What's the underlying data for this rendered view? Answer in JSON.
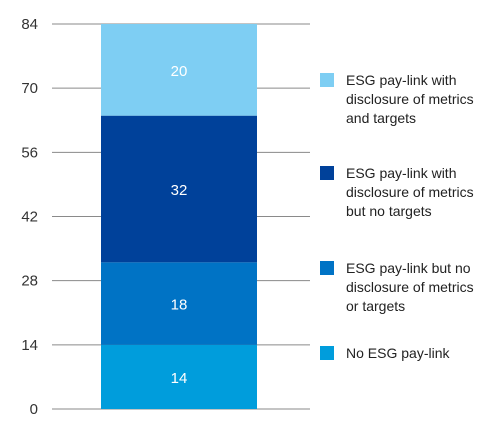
{
  "chart_data": {
    "type": "bar",
    "stacked": true,
    "categories": [
      ""
    ],
    "series": [
      {
        "name": "No ESG pay-link",
        "values": [
          14
        ],
        "color": "#009ddc"
      },
      {
        "name": "ESG pay-link but no disclosure of metrics or targets",
        "values": [
          18
        ],
        "color": "#0073c5"
      },
      {
        "name": "ESG pay-link with disclosure of metrics but no targets",
        "values": [
          32
        ],
        "color": "#00419a"
      },
      {
        "name": "ESG pay-link with disclosure of metrics and targets",
        "values": [
          20
        ],
        "color": "#7ecef3"
      }
    ],
    "yticks": [
      0,
      14,
      28,
      42,
      56,
      70,
      84
    ],
    "ylim": [
      0,
      84
    ],
    "title": "",
    "xlabel": "",
    "ylabel": "",
    "grid": true,
    "legend_position": "right"
  },
  "legend_order": [
    3,
    2,
    1,
    0
  ]
}
